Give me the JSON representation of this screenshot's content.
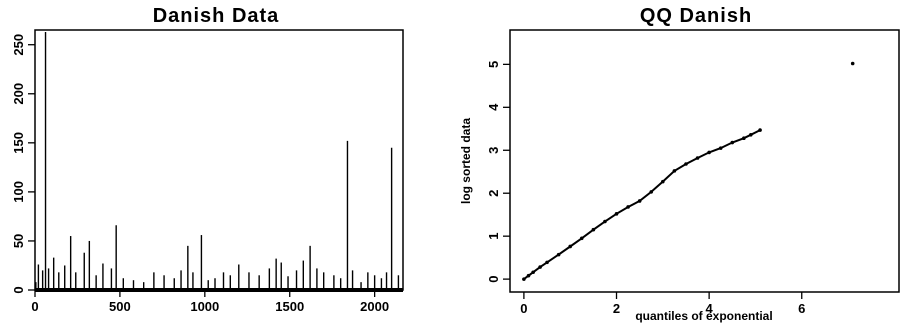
{
  "chart_data": [
    {
      "type": "bar",
      "title": "Danish Data",
      "xlabel": "",
      "ylabel": "",
      "xlim": [
        0,
        2167
      ],
      "ylim": [
        0,
        265
      ],
      "xticks": [
        0,
        500,
        1000,
        1500,
        2000
      ],
      "xtick_labels": [
        "0",
        "500",
        "1000",
        "1500",
        "2000"
      ],
      "yticks": [
        0,
        50,
        100,
        150,
        200,
        250
      ],
      "ytick_labels": [
        "0",
        "50",
        "100",
        "150",
        "200",
        "250"
      ],
      "grid": false,
      "x": [
        5,
        20,
        45,
        62,
        80,
        110,
        140,
        175,
        210,
        240,
        290,
        320,
        360,
        400,
        450,
        478,
        520,
        580,
        640,
        700,
        760,
        820,
        860,
        900,
        930,
        980,
        1020,
        1060,
        1110,
        1150,
        1200,
        1260,
        1320,
        1380,
        1420,
        1450,
        1490,
        1540,
        1580,
        1620,
        1660,
        1700,
        1760,
        1800,
        1840,
        1870,
        1920,
        1960,
        2000,
        2040,
        2070,
        2100,
        2140
      ],
      "values": [
        8,
        26,
        20,
        263,
        22,
        33,
        18,
        25,
        55,
        18,
        38,
        50,
        15,
        27,
        22,
        66,
        12,
        10,
        8,
        18,
        15,
        12,
        20,
        45,
        18,
        56,
        10,
        12,
        18,
        15,
        26,
        18,
        15,
        22,
        32,
        28,
        14,
        20,
        30,
        45,
        22,
        18,
        15,
        12,
        152,
        20,
        8,
        18,
        15,
        12,
        18,
        145,
        15
      ]
    },
    {
      "type": "scatter",
      "title": "QQ Danish",
      "xlabel": "quantiles of exponential",
      "ylabel": "log sorted data",
      "xlim": [
        -0.3,
        8.1
      ],
      "ylim": [
        -0.3,
        5.8
      ],
      "xticks": [
        0,
        2,
        4,
        6
      ],
      "xtick_labels": [
        "0",
        "2",
        "4",
        "6"
      ],
      "yticks": [
        0,
        1,
        2,
        3,
        4,
        5
      ],
      "ytick_labels": [
        "0",
        "1",
        "2",
        "3",
        "4",
        "5"
      ],
      "grid": false,
      "x": [
        0.0,
        0.1,
        0.2,
        0.35,
        0.5,
        0.75,
        1.0,
        1.25,
        1.5,
        1.75,
        2.0,
        2.25,
        2.5,
        2.75,
        3.0,
        3.25,
        3.5,
        3.75,
        4.0,
        4.25,
        4.5,
        4.75,
        4.9,
        5.1,
        7.1
      ],
      "values": [
        0.0,
        0.08,
        0.16,
        0.28,
        0.39,
        0.57,
        0.76,
        0.95,
        1.15,
        1.34,
        1.52,
        1.68,
        1.82,
        2.03,
        2.27,
        2.52,
        2.68,
        2.82,
        2.95,
        3.05,
        3.18,
        3.28,
        3.36,
        3.47,
        5.02
      ]
    }
  ]
}
